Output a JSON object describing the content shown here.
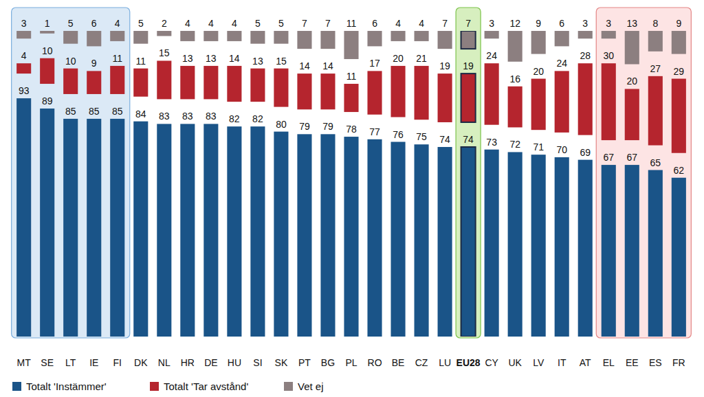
{
  "chart_data": {
    "type": "bar",
    "stacked": true,
    "data_labels": true,
    "tick_labels": "x",
    "grid": false,
    "legend": "bottom-left",
    "ylim": [
      0,
      100
    ],
    "categories": [
      "MT",
      "SE",
      "LT",
      "IE",
      "FI",
      "DK",
      "NL",
      "HR",
      "DE",
      "HU",
      "SI",
      "SK",
      "PT",
      "BG",
      "PL",
      "RO",
      "BE",
      "CZ",
      "LU",
      "EU28",
      "CY",
      "UK",
      "LV",
      "IT",
      "AT",
      "EL",
      "EE",
      "ES",
      "FR"
    ],
    "series": [
      {
        "name": "Totalt 'Instämmer'",
        "color": "#1a5488",
        "values": [
          93,
          89,
          85,
          85,
          85,
          84,
          83,
          83,
          83,
          82,
          82,
          80,
          79,
          79,
          78,
          77,
          76,
          75,
          74,
          74,
          73,
          72,
          71,
          70,
          69,
          67,
          67,
          65,
          62
        ]
      },
      {
        "name": "Totalt 'Tar avstånd'",
        "color": "#b5252e",
        "values": [
          4,
          10,
          10,
          9,
          11,
          11,
          15,
          13,
          13,
          14,
          13,
          15,
          14,
          14,
          11,
          17,
          20,
          21,
          19,
          19,
          24,
          16,
          20,
          24,
          28,
          30,
          20,
          27,
          29
        ]
      },
      {
        "name": "Vet ej",
        "color": "#8c7f80",
        "values": [
          3,
          1,
          5,
          6,
          4,
          5,
          2,
          4,
          4,
          4,
          5,
          5,
          7,
          7,
          11,
          6,
          4,
          4,
          7,
          7,
          3,
          12,
          9,
          6,
          3,
          3,
          13,
          8,
          9
        ]
      }
    ]
  }
}
